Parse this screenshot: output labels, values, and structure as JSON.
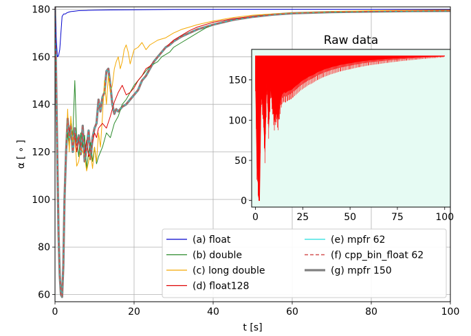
{
  "chart_data": [
    {
      "type": "line",
      "title": "",
      "xlabel": "t [s]",
      "ylabel": "α [ ∘ ]",
      "xlim": [
        0,
        100
      ],
      "ylim": [
        57,
        181
      ],
      "xticks": [
        "0",
        "20",
        "40",
        "60",
        "80",
        "100"
      ],
      "yticks": [
        "60",
        "80",
        "100",
        "120",
        "140",
        "160",
        "180"
      ],
      "grid": true,
      "legend": {
        "placement": "lower-right",
        "columns": 2
      },
      "series": [
        {
          "name": "(a) float",
          "color": "#0000cc",
          "linewidth": 1,
          "x": [
            0,
            0.3,
            0.6,
            0.9,
            1.2,
            1.5,
            1.8,
            2.2,
            2.6,
            3,
            3.5,
            4,
            5,
            6,
            8,
            10,
            14,
            20,
            30,
            50,
            100
          ],
          "y": [
            181,
            168,
            160,
            160.5,
            163,
            170,
            177,
            178,
            178,
            178.5,
            178.8,
            179,
            179.2,
            179.4,
            179.5,
            179.6,
            179.7,
            179.8,
            179.9,
            180,
            180
          ]
        },
        {
          "name": "(b) double",
          "color": "#2a8a2a",
          "linewidth": 1,
          "x": [
            0,
            0.3,
            0.6,
            0.9,
            1.2,
            1.5,
            1.8,
            2.1,
            2.4,
            2.8,
            3.2,
            3.6,
            4,
            4.5,
            5,
            5.5,
            6,
            6.5,
            7,
            7.5,
            8,
            8.5,
            9,
            9.5,
            10,
            10.5,
            11,
            12,
            13,
            14,
            15,
            16,
            17,
            18,
            19,
            20,
            21,
            22,
            23,
            24,
            25,
            26,
            27,
            28,
            29,
            30,
            32,
            34,
            36,
            38,
            40,
            45,
            50,
            55,
            60,
            70,
            80,
            90,
            100
          ],
          "y": [
            181,
            150,
            115,
            85,
            68,
            60,
            59,
            72,
            100,
            120,
            128,
            122,
            132,
            127,
            150,
            125,
            118,
            128,
            122,
            127,
            113,
            120,
            124,
            116,
            122,
            115,
            118,
            122,
            128,
            126,
            132,
            135,
            140,
            142,
            145,
            148,
            150,
            152,
            154,
            156,
            157,
            158,
            160,
            161,
            162,
            164,
            166,
            168,
            170,
            172,
            173.5,
            175.5,
            177,
            177.8,
            178.3,
            178.7,
            179,
            179.1,
            179.2
          ]
        },
        {
          "name": "(c) long double",
          "color": "#f4a800",
          "linewidth": 1,
          "x": [
            0,
            0.3,
            0.6,
            0.9,
            1.2,
            1.5,
            1.8,
            2.1,
            2.4,
            2.8,
            3.2,
            3.6,
            4,
            4.5,
            5,
            5.5,
            6,
            6.5,
            7,
            7.5,
            8,
            8.5,
            9,
            9.5,
            10,
            10.5,
            11,
            11.5,
            12,
            12.5,
            13,
            13.5,
            14,
            14.5,
            15,
            15.5,
            16,
            16.5,
            17,
            17.5,
            18,
            18.5,
            19,
            19.5,
            20,
            21,
            22,
            23,
            24,
            25,
            26,
            28,
            30,
            32,
            34,
            36,
            40,
            45,
            50,
            60,
            70,
            80,
            100
          ],
          "y": [
            181,
            150,
            115,
            85,
            68,
            60,
            59,
            72,
            100,
            120,
            138,
            120,
            135,
            124,
            128,
            114,
            116,
            122,
            120,
            118,
            112,
            116,
            120,
            113,
            122,
            116,
            128,
            122,
            135,
            150,
            140,
            152,
            145,
            148,
            155,
            158,
            160,
            155,
            158,
            163,
            165,
            162,
            157,
            160,
            163,
            164,
            166,
            163,
            165,
            166,
            167,
            168,
            170,
            171.5,
            172.5,
            173.5,
            175,
            176.5,
            177.5,
            178.5,
            179,
            179.4,
            179.7
          ]
        },
        {
          "name": "(d) float128",
          "color": "#dd0000",
          "linewidth": 1,
          "x": [
            0,
            0.3,
            0.6,
            0.9,
            1.2,
            1.5,
            1.8,
            2.1,
            2.4,
            2.8,
            3.2,
            3.6,
            4,
            4.5,
            5,
            5.5,
            6,
            6.5,
            7,
            7.5,
            8,
            8.5,
            9,
            9.5,
            10,
            10.5,
            11,
            12,
            13,
            14,
            15,
            16,
            17,
            18,
            19,
            20,
            21,
            22,
            23,
            24,
            25,
            26,
            28,
            30,
            32,
            34,
            36,
            38,
            40,
            45,
            50,
            55,
            60,
            70,
            80,
            90,
            100
          ],
          "y": [
            181,
            150,
            115,
            85,
            68,
            60,
            59,
            72,
            100,
            120,
            134,
            128,
            131,
            121,
            128,
            120,
            126,
            122,
            128,
            119,
            125,
            118,
            120,
            124,
            128,
            126,
            130,
            132,
            130,
            135,
            141,
            145,
            148,
            144,
            145,
            147,
            150,
            152,
            155,
            156,
            158,
            160,
            164,
            167,
            169,
            171,
            172.5,
            173.5,
            174.5,
            176,
            177,
            177.8,
            178.3,
            178.8,
            179.1,
            179.3,
            179.4
          ]
        },
        {
          "name": "(e) mpfr 62",
          "color": "#22dddd",
          "linewidth": 1,
          "x": [
            0,
            0.3,
            0.6,
            0.9,
            1.2,
            1.5,
            1.8,
            2.1,
            2.4,
            2.8,
            3.2,
            3.6,
            4,
            4.5,
            5,
            5.5,
            6,
            6.5,
            7,
            7.5,
            8,
            8.5,
            9,
            9.5,
            10,
            10.5,
            11,
            11.5,
            12,
            12.5,
            13,
            13.5,
            14,
            14.5,
            15,
            15.5,
            16,
            17,
            18,
            19,
            20,
            21,
            22,
            23,
            24,
            25,
            26,
            27,
            28,
            29,
            30,
            32,
            34,
            36,
            38,
            40,
            45,
            50,
            55,
            60,
            70,
            80,
            90,
            100
          ],
          "y": [
            181,
            150,
            115,
            85,
            68,
            60,
            59,
            72,
            100,
            120,
            134,
            125,
            131,
            120,
            130,
            123,
            127,
            119,
            131,
            116,
            122,
            129,
            117,
            126,
            130,
            132,
            142,
            137,
            143,
            145,
            154,
            155,
            148,
            140,
            136,
            138,
            137,
            139,
            140,
            142,
            144,
            146,
            150,
            152,
            155,
            158,
            160,
            162,
            164,
            165,
            166.5,
            168.5,
            170,
            171.5,
            172.5,
            173.5,
            175.5,
            176.8,
            177.7,
            178.3,
            178.8,
            179,
            179.2,
            179.3
          ]
        },
        {
          "name": "(f) cpp_bin_float 62",
          "color": "#d45050",
          "linewidth": 1.2,
          "dashed": true,
          "x": [
            0,
            0.3,
            0.6,
            0.9,
            1.2,
            1.5,
            1.8,
            2.1,
            2.4,
            2.8,
            3.2,
            3.6,
            4,
            4.5,
            5,
            5.5,
            6,
            6.5,
            7,
            7.5,
            8,
            8.5,
            9,
            9.5,
            10,
            10.5,
            11,
            11.5,
            12,
            12.5,
            13,
            13.5,
            14,
            14.5,
            15,
            15.5,
            16,
            17,
            18,
            19,
            20,
            21,
            22,
            23,
            24,
            25,
            26,
            27,
            28,
            29,
            30,
            32,
            34,
            36,
            38,
            40,
            45,
            50,
            55,
            60,
            70,
            80,
            90,
            100
          ],
          "y": [
            181,
            150,
            115,
            85,
            68,
            60,
            59,
            72,
            100,
            120,
            134,
            125,
            131,
            120,
            130,
            123,
            127,
            119,
            131,
            116,
            122,
            129,
            117,
            126,
            130,
            132,
            142,
            137,
            143,
            145,
            154,
            155,
            148,
            140,
            136,
            138,
            137,
            139,
            140,
            142,
            144,
            146,
            150,
            152,
            155,
            158,
            160,
            162,
            164,
            165,
            166.5,
            168.5,
            170,
            171.5,
            172.5,
            173.5,
            175.5,
            176.8,
            177.7,
            178.3,
            178.8,
            179,
            179.2,
            179.3
          ]
        },
        {
          "name": "(g) mpfr 150",
          "color": "#808080",
          "linewidth": 3.2,
          "x": [
            0,
            0.3,
            0.6,
            0.9,
            1.2,
            1.5,
            1.8,
            2.1,
            2.4,
            2.8,
            3.2,
            3.6,
            4,
            4.5,
            5,
            5.5,
            6,
            6.5,
            7,
            7.5,
            8,
            8.5,
            9,
            9.5,
            10,
            10.5,
            11,
            11.5,
            12,
            12.5,
            13,
            13.5,
            14,
            14.5,
            15,
            15.5,
            16,
            17,
            18,
            19,
            20,
            21,
            22,
            23,
            24,
            25,
            26,
            27,
            28,
            29,
            30,
            32,
            34,
            36,
            38,
            40,
            45,
            50,
            55,
            60,
            70,
            80,
            90,
            100
          ],
          "y": [
            181,
            150,
            115,
            85,
            68,
            60,
            59,
            72,
            100,
            120,
            134,
            125,
            131,
            120,
            130,
            123,
            127,
            119,
            131,
            116,
            122,
            129,
            117,
            126,
            130,
            132,
            142,
            137,
            143,
            145,
            154,
            155,
            148,
            140,
            136,
            138,
            137,
            139,
            140,
            142,
            144,
            146,
            150,
            152,
            155,
            158,
            160,
            162,
            164,
            165,
            166.5,
            168.5,
            170,
            171.5,
            172.5,
            173.5,
            175.5,
            176.8,
            177.7,
            178.3,
            178.8,
            179,
            179.2,
            179.3
          ]
        }
      ]
    },
    {
      "type": "area",
      "title": "Raw data",
      "xlabel": "",
      "ylabel": "",
      "xlim": [
        -2,
        103
      ],
      "ylim": [
        -8,
        188
      ],
      "xticks": [
        "0",
        "25",
        "50",
        "75",
        "100"
      ],
      "yticks": [
        "0",
        "50",
        "100",
        "150"
      ],
      "grid": false,
      "background": "#e6fbf3",
      "series": [
        {
          "color": "#ff0000",
          "upper": {
            "x": [
              0,
              1,
              2,
              5,
              10,
              30,
              60,
              100
            ],
            "y": [
              180,
              180,
              180,
              180,
              180,
              180,
              180,
              180
            ]
          },
          "lower": {
            "x": [
              0,
              0.8,
              1.4,
              1.8,
              2.2,
              3,
              4,
              5,
              6,
              7,
              8,
              9,
              10,
              11,
              12,
              13,
              14,
              15,
              16,
              17,
              18,
              19,
              20,
              22,
              24,
              26,
              28,
              30,
              33,
              36,
              40,
              45,
              50,
              55,
              60,
              65,
              70,
              75,
              80,
              85,
              90,
              95,
              98,
              100
            ],
            "y": [
              150,
              40,
              20,
              0,
              0,
              130,
              115,
              60,
              145,
              90,
              140,
              120,
              100,
              110,
              100,
              120,
              132,
              135,
              134,
              136,
              137,
              138,
              140,
              144,
              148,
              151,
              154,
              156,
              160,
              163,
              166,
              169,
              171,
              173,
              174.5,
              175.5,
              176.5,
              177.3,
              178,
              178.5,
              179,
              179.3,
              179.5,
              179.6
            ]
          }
        }
      ]
    }
  ]
}
